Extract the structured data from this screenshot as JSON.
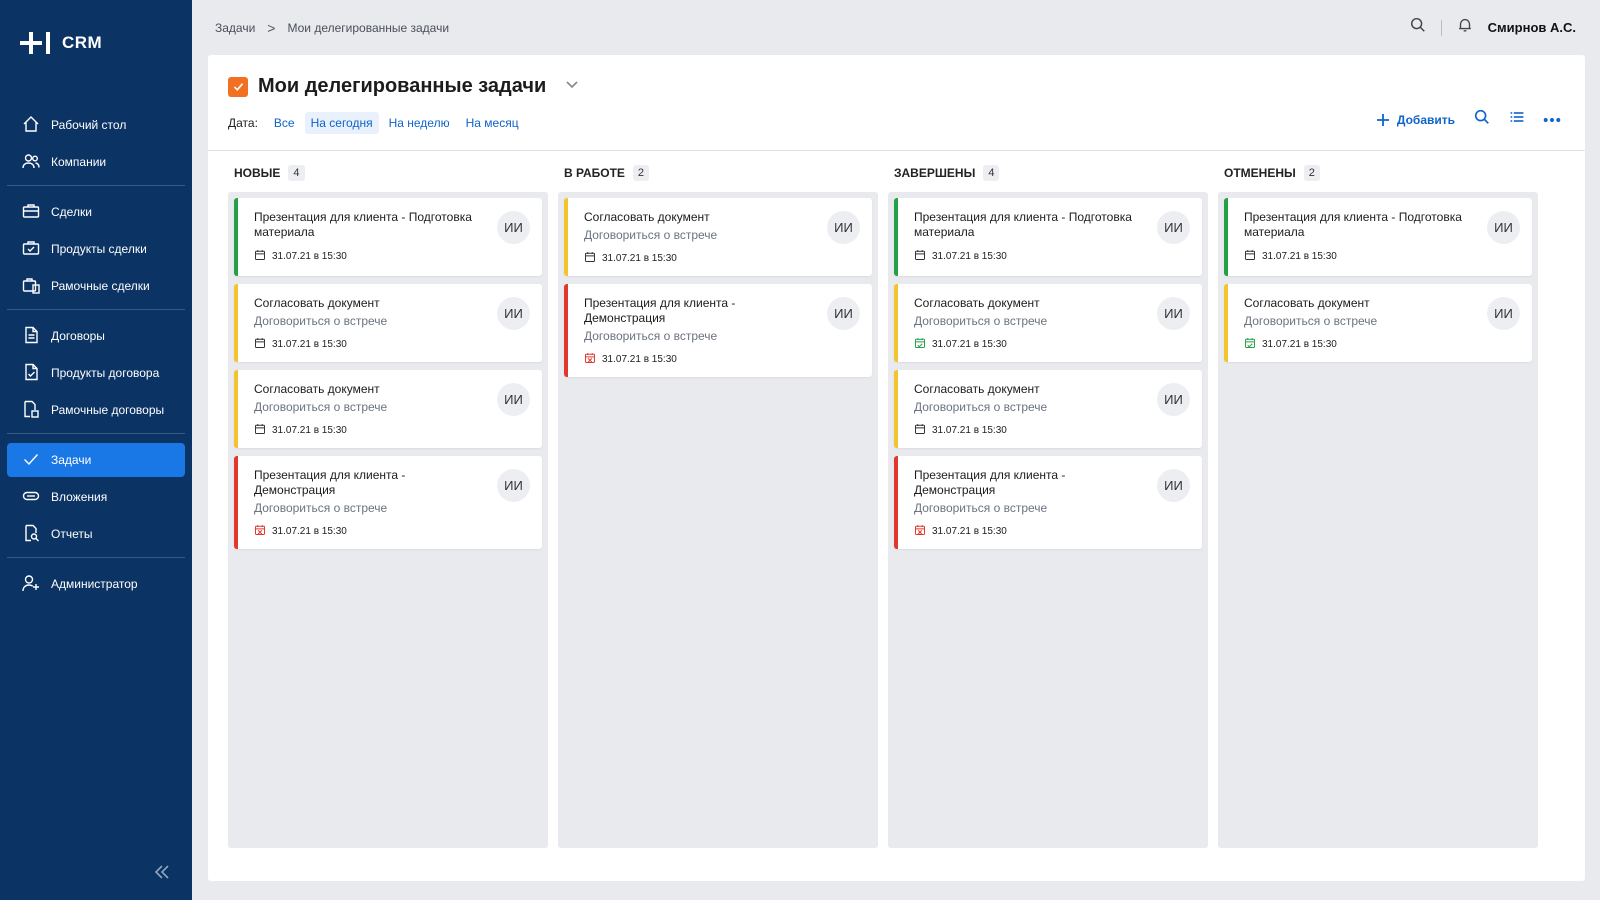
{
  "app": {
    "logo_text": "CRM"
  },
  "sidebar": {
    "groups": [
      [
        {
          "label": "Рабочий стол",
          "icon": "home-icon"
        },
        {
          "label": "Компании",
          "icon": "users-icon"
        }
      ],
      [
        {
          "label": "Сделки",
          "icon": "briefcase-icon"
        },
        {
          "label": "Продукты сделки",
          "icon": "briefcase-check-icon"
        },
        {
          "label": "Рамочные сделки",
          "icon": "briefcase-doc-icon"
        }
      ],
      [
        {
          "label": "Договоры",
          "icon": "document-icon"
        },
        {
          "label": "Продукты договора",
          "icon": "document-check-icon"
        },
        {
          "label": "Рамочные договоры",
          "icon": "document-frame-icon"
        }
      ],
      [
        {
          "label": "Задачи",
          "icon": "check-icon",
          "active": true
        },
        {
          "label": "Вложения",
          "icon": "paperclip-icon"
        },
        {
          "label": "Отчеты",
          "icon": "report-search-icon"
        }
      ],
      [
        {
          "label": "Администратор",
          "icon": "user-plus-icon"
        }
      ]
    ]
  },
  "breadcrumb": {
    "parent": "Задачи",
    "separator": ">",
    "current": "Мои делегированные задачи"
  },
  "user": {
    "name": "Смирнов А.С."
  },
  "page": {
    "title": "Мои делегированные задачи",
    "filter_label": "Дата:",
    "filters": [
      "Все",
      "На сегодня",
      "На неделю",
      "На месяц"
    ],
    "active_filter": "На сегодня",
    "add_label": "Добавить"
  },
  "colors": {
    "sidebar": "#0b3363",
    "accent": "#1a78e6",
    "link": "#0f63c9",
    "green": "#24a148",
    "yellow": "#f4c330",
    "red": "#e0372f",
    "title_check": "#f27022"
  },
  "columns": [
    {
      "title": "Новые",
      "count": "4",
      "cards": [
        {
          "status": "green",
          "title": "Презентация для клиента - Подготовка материала",
          "subtitle": "",
          "date": "31.07.21 в 15:30",
          "date_icon": "calendar",
          "avatar": "ИИ"
        },
        {
          "status": "yellow",
          "title": "Согласовать документ",
          "subtitle": "Договориться о встрече",
          "date": "31.07.21 в 15:30",
          "date_icon": "calendar",
          "avatar": "ИИ"
        },
        {
          "status": "yellow",
          "title": "Согласовать документ",
          "subtitle": "Договориться о встрече",
          "date": "31.07.21 в 15:30",
          "date_icon": "calendar",
          "avatar": "ИИ"
        },
        {
          "status": "red",
          "title": "Презентация для клиента - Демонстрация",
          "subtitle": "Договориться о встрече",
          "date": "31.07.21 в 15:30",
          "date_icon": "calendar-x",
          "avatar": "ИИ"
        }
      ]
    },
    {
      "title": "В работе",
      "count": "2",
      "cards": [
        {
          "status": "yellow",
          "title": "Согласовать документ",
          "subtitle": "Договориться о встрече",
          "date": "31.07.21 в 15:30",
          "date_icon": "calendar",
          "avatar": "ИИ"
        },
        {
          "status": "red",
          "title": "Презентация для клиента - Демонстрация",
          "subtitle": "Договориться о встрече",
          "date": "31.07.21 в 15:30",
          "date_icon": "calendar-x",
          "avatar": "ИИ"
        }
      ]
    },
    {
      "title": "Завершены",
      "count": "4",
      "cards": [
        {
          "status": "green",
          "title": "Презентация для клиента - Подготовка материала",
          "subtitle": "",
          "date": "31.07.21 в 15:30",
          "date_icon": "calendar",
          "avatar": "ИИ"
        },
        {
          "status": "yellow",
          "title": "Согласовать документ",
          "subtitle": "Договориться о встрече",
          "date": "31.07.21 в 15:30",
          "date_icon": "calendar-check",
          "avatar": "ИИ"
        },
        {
          "status": "yellow",
          "title": "Согласовать документ",
          "subtitle": "Договориться о встрече",
          "date": "31.07.21 в 15:30",
          "date_icon": "calendar",
          "avatar": "ИИ"
        },
        {
          "status": "red",
          "title": "Презентация для клиента - Демонстрация",
          "subtitle": "Договориться о встрече",
          "date": "31.07.21 в 15:30",
          "date_icon": "calendar-x",
          "avatar": "ИИ"
        }
      ]
    },
    {
      "title": "Отменены",
      "count": "2",
      "cards": [
        {
          "status": "green",
          "title": "Презентация для клиента - Подготовка материала",
          "subtitle": "",
          "date": "31.07.21 в 15:30",
          "date_icon": "calendar",
          "avatar": "ИИ"
        },
        {
          "status": "yellow",
          "title": "Согласовать документ",
          "subtitle": "Договориться о встрече",
          "date": "31.07.21 в 15:30",
          "date_icon": "calendar-check",
          "avatar": "ИИ"
        }
      ]
    }
  ]
}
